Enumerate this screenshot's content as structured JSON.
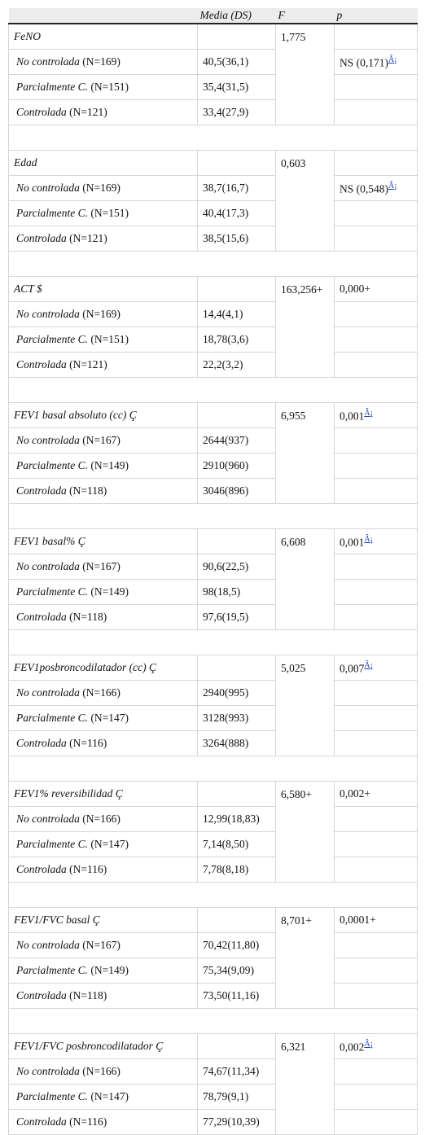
{
  "header": [
    "Media (DS)",
    "F",
    "p"
  ],
  "groups": [
    {
      "title": "FeNO",
      "F": "1,775",
      "rows": [
        {
          "category": "No controlada",
          "n": "(N=169)",
          "value": "40,5(36,1)",
          "p": {
            "text": "NS (0,171)",
            "note": "Â¡"
          }
        },
        {
          "category": "Parcialmente C.",
          "n": "(N=151)",
          "value": "35,4(31,5)"
        },
        {
          "category": "Controlada",
          "n": "(N=121)",
          "value": "33,4(27,9)"
        }
      ]
    },
    {
      "title": "Edad",
      "F": "0,603",
      "rows": [
        {
          "category": "No controlada",
          "n": "(N=169)",
          "value": "38,7(16,7)",
          "p": {
            "text": "NS (0,548)",
            "note": "Â¡"
          }
        },
        {
          "category": "Parcialmente C.",
          "n": "(N=151)",
          "value": "40,4(17,3)"
        },
        {
          "category": "Controlada",
          "n": "(N=121)",
          "value": "38,5(15,6)"
        }
      ]
    },
    {
      "title": "ACT $",
      "F": "163,256+",
      "p": {
        "text": "0,000+"
      },
      "rows": [
        {
          "category": "No controlada",
          "n": "(N=169)",
          "value": "14,4(4,1)"
        },
        {
          "category": "Parcialmente C.",
          "n": "(N=151)",
          "value": "18,78(3,6)"
        },
        {
          "category": "Controlada",
          "n": "(N=121)",
          "value": "22,2(3,2)"
        }
      ]
    },
    {
      "title": "FEV1 basal absoluto (cc) Ç",
      "F": "6,955",
      "p": {
        "text": "0,001",
        "note": "Â¡"
      },
      "rows": [
        {
          "category": "No controlada",
          "n": "(N=167)",
          "value": "2644(937)"
        },
        {
          "category": "Parcialmente C.",
          "n": "(N=149)",
          "value": "2910(960)"
        },
        {
          "category": "Controlada",
          "n": "(N=118)",
          "value": "3046(896)"
        }
      ]
    },
    {
      "title": "FEV1 basal% Ç",
      "F": "6,608",
      "p": {
        "text": "0,001",
        "note": "Â¡"
      },
      "rows": [
        {
          "category": "No controlada",
          "n": "(N=167)",
          "value": "90,6(22,5)"
        },
        {
          "category": "Parcialmente C.",
          "n": "(N=149)",
          "value": "98(18,5)"
        },
        {
          "category": "Controlada",
          "n": "(N=118)",
          "value": "97,6(19,5)"
        }
      ]
    },
    {
      "title": "FEV1posbroncodilatador (cc) Ç",
      "F": "5,025",
      "p": {
        "text": "0,007",
        "note": "Â¡"
      },
      "rows": [
        {
          "category": "No controlada",
          "n": "(N=166)",
          "value": "2940(995)"
        },
        {
          "category": "Parcialmente C.",
          "n": "(N=147)",
          "value": "3128(993)"
        },
        {
          "category": "Controlada",
          "n": "(N=116)",
          "value": "3264(888)"
        }
      ]
    },
    {
      "title": "FEV1% reversibilidad Ç",
      "F": "6,580+",
      "p": {
        "text": "0,002+"
      },
      "rows": [
        {
          "category": "No controlada",
          "n": "(N=166)",
          "value": "12,99(18,83)"
        },
        {
          "category": "Parcialmente C.",
          "n": "(N=147)",
          "value": "7,14(8,50)"
        },
        {
          "category": "Controlada",
          "n": "(N=116)",
          "value": "7,78(8,18)"
        }
      ]
    },
    {
      "title": "FEV1/FVC basal Ç",
      "F": "8,701+",
      "p": {
        "text": "0,0001+"
      },
      "rows": [
        {
          "category": "No controlada",
          "n": "(N=167)",
          "value": "70,42(11,80)"
        },
        {
          "category": "Parcialmente C.",
          "n": "(N=149)",
          "value": "75,34(9,09)"
        },
        {
          "category": "Controlada",
          "n": "(N=118)",
          "value": "73,50(11,16)"
        }
      ]
    },
    {
      "title": "FEV1/FVC posbroncodilatador Ç",
      "F": "6,321",
      "p": {
        "text": "0,002",
        "note": "Â¡"
      },
      "rows": [
        {
          "category": "No controlada",
          "n": "(N=166)",
          "value": "74,67(11,34)"
        },
        {
          "category": "Parcialmente C.",
          "n": "(N=147)",
          "value": "78,79(9,1)"
        },
        {
          "category": "Controlada",
          "n": "(N=116)",
          "value": "77,29(10,39)"
        }
      ]
    }
  ]
}
